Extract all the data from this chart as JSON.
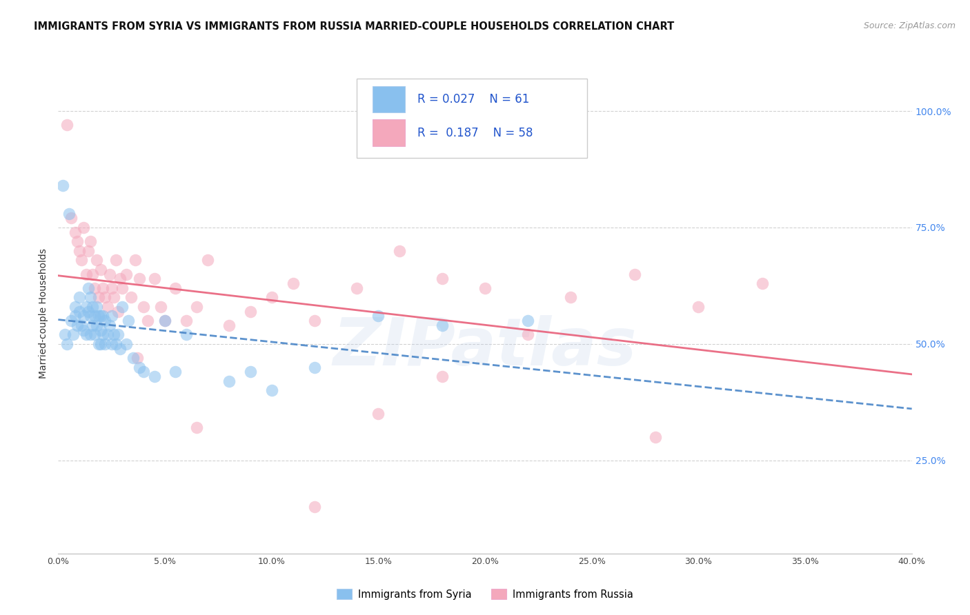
{
  "title": "IMMIGRANTS FROM SYRIA VS IMMIGRANTS FROM RUSSIA MARRIED-COUPLE HOUSEHOLDS CORRELATION CHART",
  "source": "Source: ZipAtlas.com",
  "ylabel": "Married-couple Households",
  "xmin": 0.0,
  "xmax": 0.4,
  "ymin": 0.05,
  "ymax": 1.08,
  "legend_R_syria": "0.027",
  "legend_N_syria": "61",
  "legend_R_russia": "0.187",
  "legend_N_russia": "58",
  "watermark": "ZIPatlas",
  "color_syria": "#89C0EE",
  "color_russia": "#F4A8BC",
  "color_syria_line": "#4A86C8",
  "color_russia_line": "#E8607A",
  "syria_x": [
    0.002,
    0.003,
    0.004,
    0.005,
    0.006,
    0.007,
    0.008,
    0.008,
    0.009,
    0.01,
    0.01,
    0.011,
    0.012,
    0.012,
    0.013,
    0.013,
    0.014,
    0.014,
    0.015,
    0.015,
    0.015,
    0.016,
    0.016,
    0.017,
    0.017,
    0.018,
    0.018,
    0.019,
    0.019,
    0.02,
    0.02,
    0.02,
    0.021,
    0.021,
    0.022,
    0.022,
    0.023,
    0.024,
    0.025,
    0.025,
    0.026,
    0.027,
    0.028,
    0.029,
    0.03,
    0.032,
    0.033,
    0.035,
    0.038,
    0.04,
    0.045,
    0.05,
    0.055,
    0.06,
    0.08,
    0.09,
    0.1,
    0.12,
    0.15,
    0.18,
    0.22
  ],
  "syria_y": [
    0.84,
    0.52,
    0.5,
    0.78,
    0.55,
    0.52,
    0.58,
    0.56,
    0.54,
    0.6,
    0.57,
    0.54,
    0.56,
    0.53,
    0.58,
    0.52,
    0.62,
    0.57,
    0.6,
    0.56,
    0.52,
    0.58,
    0.54,
    0.56,
    0.52,
    0.58,
    0.54,
    0.56,
    0.5,
    0.56,
    0.53,
    0.5,
    0.56,
    0.52,
    0.55,
    0.5,
    0.52,
    0.54,
    0.56,
    0.5,
    0.52,
    0.5,
    0.52,
    0.49,
    0.58,
    0.5,
    0.55,
    0.47,
    0.45,
    0.44,
    0.43,
    0.55,
    0.44,
    0.52,
    0.42,
    0.44,
    0.4,
    0.45,
    0.56,
    0.54,
    0.55
  ],
  "russia_x": [
    0.004,
    0.006,
    0.008,
    0.009,
    0.01,
    0.011,
    0.012,
    0.013,
    0.014,
    0.015,
    0.016,
    0.017,
    0.018,
    0.019,
    0.02,
    0.021,
    0.022,
    0.023,
    0.024,
    0.025,
    0.026,
    0.027,
    0.028,
    0.029,
    0.03,
    0.032,
    0.034,
    0.036,
    0.038,
    0.04,
    0.042,
    0.045,
    0.048,
    0.05,
    0.055,
    0.06,
    0.065,
    0.07,
    0.08,
    0.09,
    0.1,
    0.11,
    0.12,
    0.14,
    0.16,
    0.18,
    0.2,
    0.22,
    0.24,
    0.27,
    0.3,
    0.33,
    0.037,
    0.065,
    0.12,
    0.15,
    0.18,
    0.28
  ],
  "russia_y": [
    0.97,
    0.77,
    0.74,
    0.72,
    0.7,
    0.68,
    0.75,
    0.65,
    0.7,
    0.72,
    0.65,
    0.62,
    0.68,
    0.6,
    0.66,
    0.62,
    0.6,
    0.58,
    0.65,
    0.62,
    0.6,
    0.68,
    0.57,
    0.64,
    0.62,
    0.65,
    0.6,
    0.68,
    0.64,
    0.58,
    0.55,
    0.64,
    0.58,
    0.55,
    0.62,
    0.55,
    0.58,
    0.68,
    0.54,
    0.57,
    0.6,
    0.63,
    0.55,
    0.62,
    0.7,
    0.64,
    0.62,
    0.52,
    0.6,
    0.65,
    0.58,
    0.63,
    0.47,
    0.32,
    0.15,
    0.35,
    0.43,
    0.3
  ]
}
